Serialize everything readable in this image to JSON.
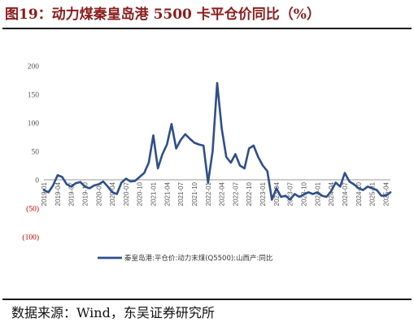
{
  "figure": {
    "title": "图19：动力煤秦皇岛港 5500 卡平仓价同比（%）",
    "source": "数据来源：Wind，东吴证券研究所"
  },
  "chart_data": {
    "type": "line",
    "ylim": [
      -100,
      200
    ],
    "yticks": [
      200,
      150,
      100,
      50,
      0,
      -50,
      -100
    ],
    "ytick_labels": [
      "200",
      "150",
      "100",
      "50",
      "0",
      "(50)",
      "(100)"
    ],
    "xticks": [
      "2019-01",
      "2019-04",
      "2019-07",
      "2019-10",
      "2020-01",
      "2020-04",
      "2020-07",
      "2020-10",
      "2021-01",
      "2021-04",
      "2021-07",
      "2021-10",
      "2022-01",
      "2022-04",
      "2022-07",
      "2022-10",
      "2023-01",
      "2023-04",
      "2023-07",
      "2023-10",
      "2024-01",
      "2024-04",
      "2024-07",
      "2024-10",
      "2025-01",
      "2025-04"
    ],
    "grid": false,
    "legend_position": "bottom",
    "series": [
      {
        "name": "秦皇岛港:平仓价:动力末煤(Q5500):山西产:同比",
        "color": "#2e4f8a",
        "x": [
          "2019-01",
          "2019-02",
          "2019-03",
          "2019-04",
          "2019-05",
          "2019-06",
          "2019-07",
          "2019-08",
          "2019-09",
          "2019-10",
          "2019-11",
          "2019-12",
          "2020-01",
          "2020-02",
          "2020-03",
          "2020-04",
          "2020-05",
          "2020-06",
          "2020-07",
          "2020-08",
          "2020-09",
          "2020-10",
          "2020-11",
          "2020-12",
          "2021-01",
          "2021-02",
          "2021-03",
          "2021-04",
          "2021-05",
          "2021-06",
          "2021-07",
          "2021-08",
          "2021-09",
          "2021-10",
          "2021-11",
          "2021-12",
          "2022-01",
          "2022-02",
          "2022-03",
          "2022-04",
          "2022-05",
          "2022-06",
          "2022-07",
          "2022-08",
          "2022-09",
          "2022-10",
          "2022-11",
          "2022-12",
          "2023-01",
          "2023-02",
          "2023-03",
          "2023-04",
          "2023-05",
          "2023-06",
          "2023-07",
          "2023-08",
          "2023-09",
          "2023-10",
          "2023-11",
          "2023-12",
          "2024-01",
          "2024-02",
          "2024-03",
          "2024-04",
          "2024-05",
          "2024-06",
          "2024-07",
          "2024-08",
          "2024-09",
          "2024-10",
          "2024-11",
          "2024-12",
          "2025-01",
          "2025-02",
          "2025-03",
          "2025-04",
          "2025-05"
        ],
        "values": [
          -18,
          -22,
          -10,
          8,
          5,
          -8,
          -12,
          -6,
          -4,
          -12,
          -15,
          -10,
          -8,
          -3,
          -12,
          -22,
          -25,
          -5,
          2,
          -3,
          -2,
          5,
          12,
          30,
          78,
          20,
          45,
          62,
          98,
          55,
          70,
          80,
          72,
          65,
          62,
          60,
          -5,
          50,
          170,
          90,
          40,
          30,
          45,
          25,
          20,
          55,
          60,
          40,
          25,
          15,
          -35,
          -15,
          -30,
          -28,
          -35,
          -25,
          -30,
          -26,
          -22,
          -25,
          -22,
          -28,
          -30,
          -20,
          -5,
          -12,
          12,
          -3,
          -8,
          -15,
          -18,
          -12,
          -15,
          -18,
          -28,
          -28,
          -22
        ]
      }
    ]
  }
}
